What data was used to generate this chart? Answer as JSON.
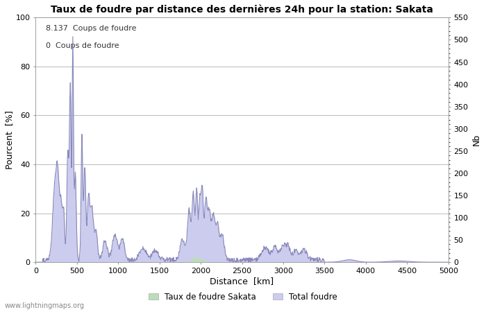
{
  "title": "Taux de foudre par distance des dernières 24h pour la station: Sakata",
  "xlabel": "Distance  [km]",
  "ylabel_left": "Pourcent  [%]",
  "ylabel_right": "Nb",
  "xlim": [
    0,
    5000
  ],
  "ylim_left": [
    0,
    100
  ],
  "ylim_right": [
    0,
    550
  ],
  "yticks_left": [
    0,
    20,
    40,
    60,
    80,
    100
  ],
  "yticks_right": [
    0,
    50,
    100,
    150,
    200,
    250,
    300,
    350,
    400,
    450,
    500,
    550
  ],
  "xticks": [
    0,
    500,
    1000,
    1500,
    2000,
    2500,
    3000,
    3500,
    4000,
    4500,
    5000
  ],
  "annotation1": "8.137  Coups de foudre",
  "annotation2": "0  Coups de foudre",
  "legend_labels": [
    "Taux de foudre Sakata",
    "Total foudre"
  ],
  "green_color": "#bbddbb",
  "blue_fill_color": "#ccccee",
  "line_color": "#8888bb",
  "watermark": "www.lightningmaps.org",
  "background_color": "#ffffff",
  "grid_color": "#bbbbbb"
}
